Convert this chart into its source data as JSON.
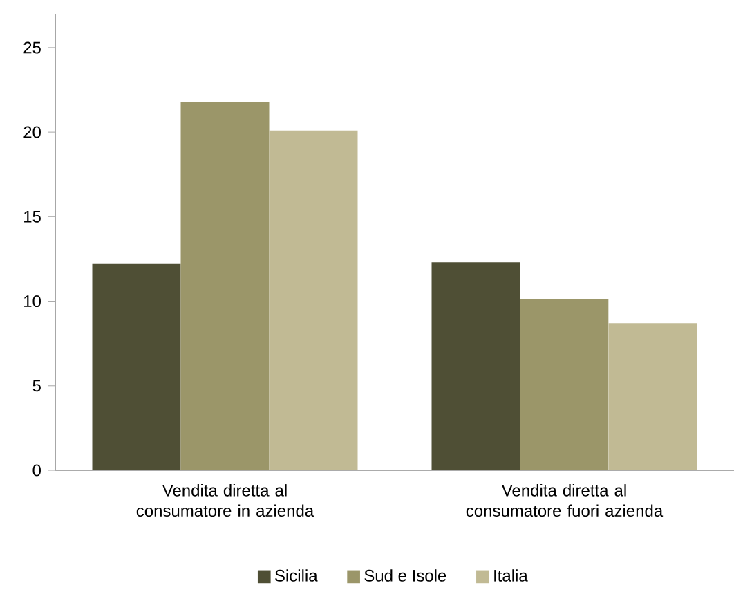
{
  "chart_data": {
    "type": "bar",
    "categories": [
      "Vendita diretta al consumatore in azienda",
      "Vendita diretta al consumatore fuori azienda"
    ],
    "series": [
      {
        "name": "Sicilia",
        "color": "#4f4f35",
        "values": [
          12.2,
          12.3
        ]
      },
      {
        "name": "Sud e Isole",
        "color": "#9b9669",
        "values": [
          21.8,
          10.1
        ]
      },
      {
        "name": "Italia",
        "color": "#c1ba94",
        "values": [
          20.1,
          8.7
        ]
      }
    ],
    "ylim": [
      0,
      27
    ],
    "yticks": [
      0,
      5,
      10,
      15,
      20,
      25
    ],
    "grid": false,
    "legend": "bottom"
  }
}
